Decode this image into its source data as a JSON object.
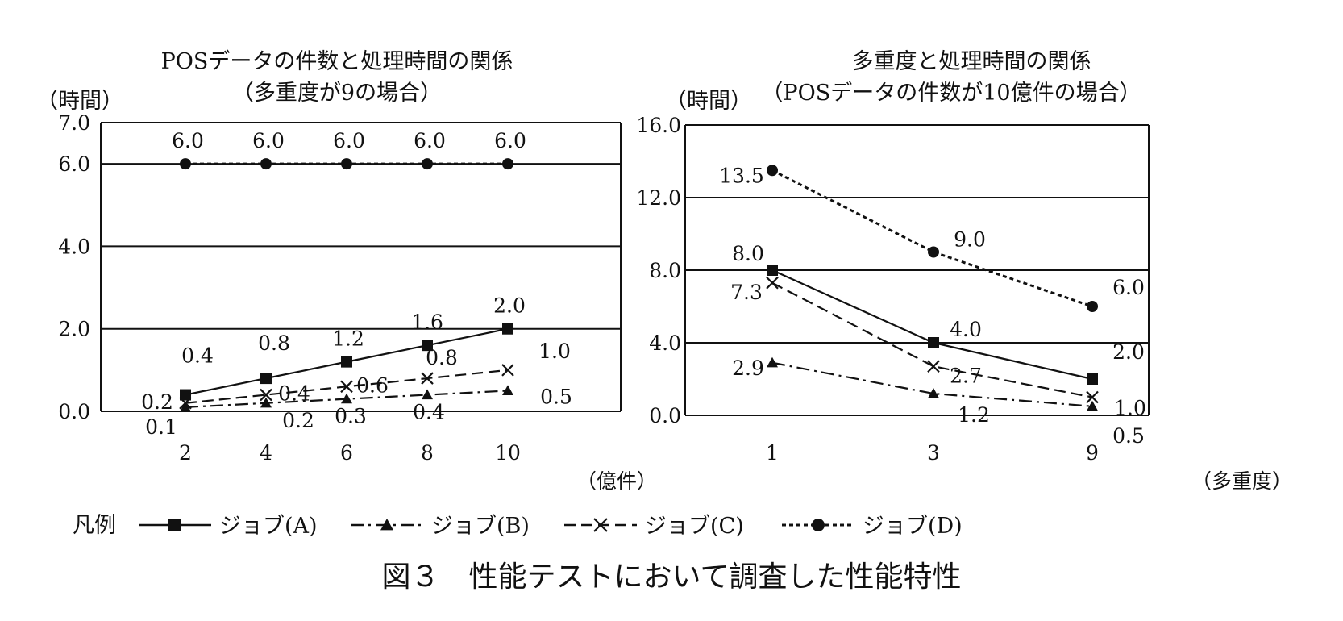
{
  "caption": "図３　性能テストにおいて調査した性能特性",
  "legend": {
    "label": "凡例",
    "items": [
      {
        "key": "A",
        "label": "ジョブ(A)",
        "marker": "square",
        "dash": "solid"
      },
      {
        "key": "B",
        "label": "ジョブ(B)",
        "marker": "triangle",
        "dash": "dashdot"
      },
      {
        "key": "C",
        "label": "ジョブ(C)",
        "marker": "x",
        "dash": "dashed"
      },
      {
        "key": "D",
        "label": "ジョブ(D)",
        "marker": "circle",
        "dash": "dotted"
      }
    ]
  },
  "chart_data": [
    {
      "type": "line",
      "title": "POSデータの件数と処理時間の関係",
      "subtitle": "（多重度が9の場合）",
      "ylabel": "（時間）",
      "xunit": "（億件）",
      "categories": [
        "2",
        "4",
        "6",
        "8",
        "10"
      ],
      "x": [
        2,
        4,
        6,
        8,
        10
      ],
      "ylim": [
        0,
        7
      ],
      "yticks": [
        "0.0",
        "2.0",
        "4.0",
        "6.0",
        "7.0"
      ],
      "ytick_values": [
        0,
        2,
        4,
        6,
        7
      ],
      "grid": true,
      "series": [
        {
          "name": "ジョブ(A)",
          "values": [
            0.4,
            0.8,
            1.2,
            1.6,
            2.0
          ],
          "labels": [
            "0.4",
            "0.8",
            "1.2",
            "1.6",
            "2.0"
          ]
        },
        {
          "name": "ジョブ(B)",
          "values": [
            0.1,
            0.2,
            0.3,
            0.4,
            0.5
          ],
          "labels": [
            "0.1",
            "0.2",
            "0.3",
            "0.4",
            "0.5"
          ]
        },
        {
          "name": "ジョブ(C)",
          "values": [
            0.2,
            0.4,
            0.6,
            0.8,
            1.0
          ],
          "labels": [
            "0.2",
            "0.4",
            "0.6",
            "0.8",
            "1.0"
          ]
        },
        {
          "name": "ジョブ(D)",
          "values": [
            6.0,
            6.0,
            6.0,
            6.0,
            6.0
          ],
          "labels": [
            "6.0",
            "6.0",
            "6.0",
            "6.0",
            "6.0"
          ]
        }
      ]
    },
    {
      "type": "line",
      "title": "多重度と処理時間の関係",
      "subtitle": "（POSデータの件数が10億件の場合）",
      "ylabel": "（時間）",
      "xunit": "（多重度）",
      "categories": [
        "1",
        "3",
        "9"
      ],
      "x": [
        1,
        3,
        9
      ],
      "ylim": [
        0,
        16
      ],
      "yticks": [
        "0.0",
        "4.0",
        "8.0",
        "12.0",
        "16.0"
      ],
      "ytick_values": [
        0,
        4,
        8,
        12,
        16
      ],
      "grid": true,
      "series": [
        {
          "name": "ジョブ(A)",
          "values": [
            8.0,
            4.0,
            2.0
          ],
          "labels": [
            "8.0",
            "4.0",
            "2.0"
          ]
        },
        {
          "name": "ジョブ(B)",
          "values": [
            2.9,
            1.2,
            0.5
          ],
          "labels": [
            "2.9",
            "1.2",
            "0.5"
          ]
        },
        {
          "name": "ジョブ(C)",
          "values": [
            7.3,
            2.7,
            1.0
          ],
          "labels": [
            "7.3",
            "2.7",
            "1.0"
          ]
        },
        {
          "name": "ジョブ(D)",
          "values": [
            13.5,
            9.0,
            6.0
          ],
          "labels": [
            "13.5",
            "9.0",
            "6.0"
          ]
        }
      ]
    }
  ]
}
